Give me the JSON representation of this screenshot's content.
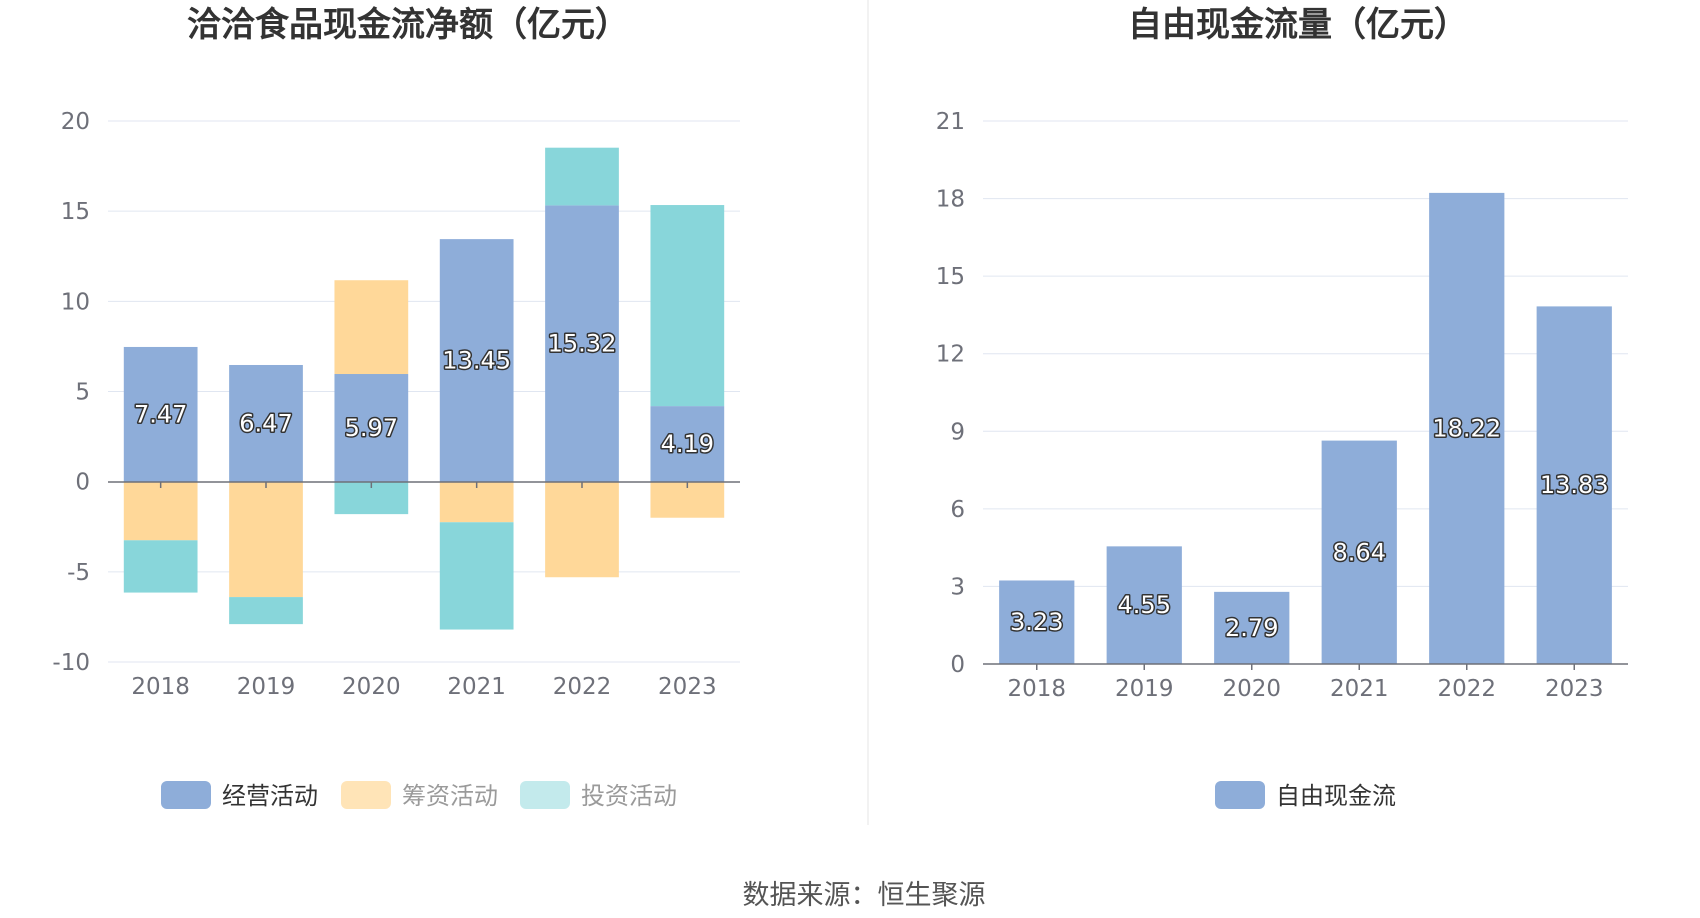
{
  "source_label": "数据来源：恒生聚源",
  "chart_data": [
    {
      "type": "bar",
      "stacked": true,
      "title": "洽洽食品现金流净额（亿元）",
      "categories": [
        "2018",
        "2019",
        "2020",
        "2021",
        "2022",
        "2023"
      ],
      "ylim": [
        -10,
        20
      ],
      "yticks": [
        -10,
        -5,
        0,
        5,
        10,
        15,
        20
      ],
      "grid": true,
      "legend_position": "bottom",
      "series": [
        {
          "name": "经营活动",
          "color": "#8eadd9",
          "values": [
            7.47,
            6.47,
            5.97,
            13.45,
            15.32,
            4.19
          ],
          "labels": [
            "7.47",
            "6.47",
            "5.97",
            "13.45",
            "15.32",
            "4.19"
          ]
        },
        {
          "name": "筹资活动",
          "color": "#ffd899",
          "values": [
            -3.25,
            -6.4,
            5.2,
            -2.25,
            -5.3,
            -2.0
          ]
        },
        {
          "name": "投资活动",
          "color": "#88d6da",
          "values": [
            -2.9,
            -1.5,
            -1.8,
            -5.95,
            3.2,
            11.15
          ]
        }
      ]
    },
    {
      "type": "bar",
      "title": "自由现金流量（亿元）",
      "categories": [
        "2018",
        "2019",
        "2020",
        "2021",
        "2022",
        "2023"
      ],
      "ylim": [
        0,
        21
      ],
      "yticks": [
        0,
        3,
        6,
        9,
        12,
        15,
        18,
        21
      ],
      "grid": true,
      "legend_position": "bottom",
      "series": [
        {
          "name": "自由现金流",
          "color": "#8eadd9",
          "values": [
            3.23,
            4.55,
            2.79,
            8.64,
            18.22,
            13.83
          ],
          "labels": [
            "3.23",
            "4.55",
            "2.79",
            "8.64",
            "18.22",
            "13.83"
          ]
        }
      ]
    }
  ]
}
